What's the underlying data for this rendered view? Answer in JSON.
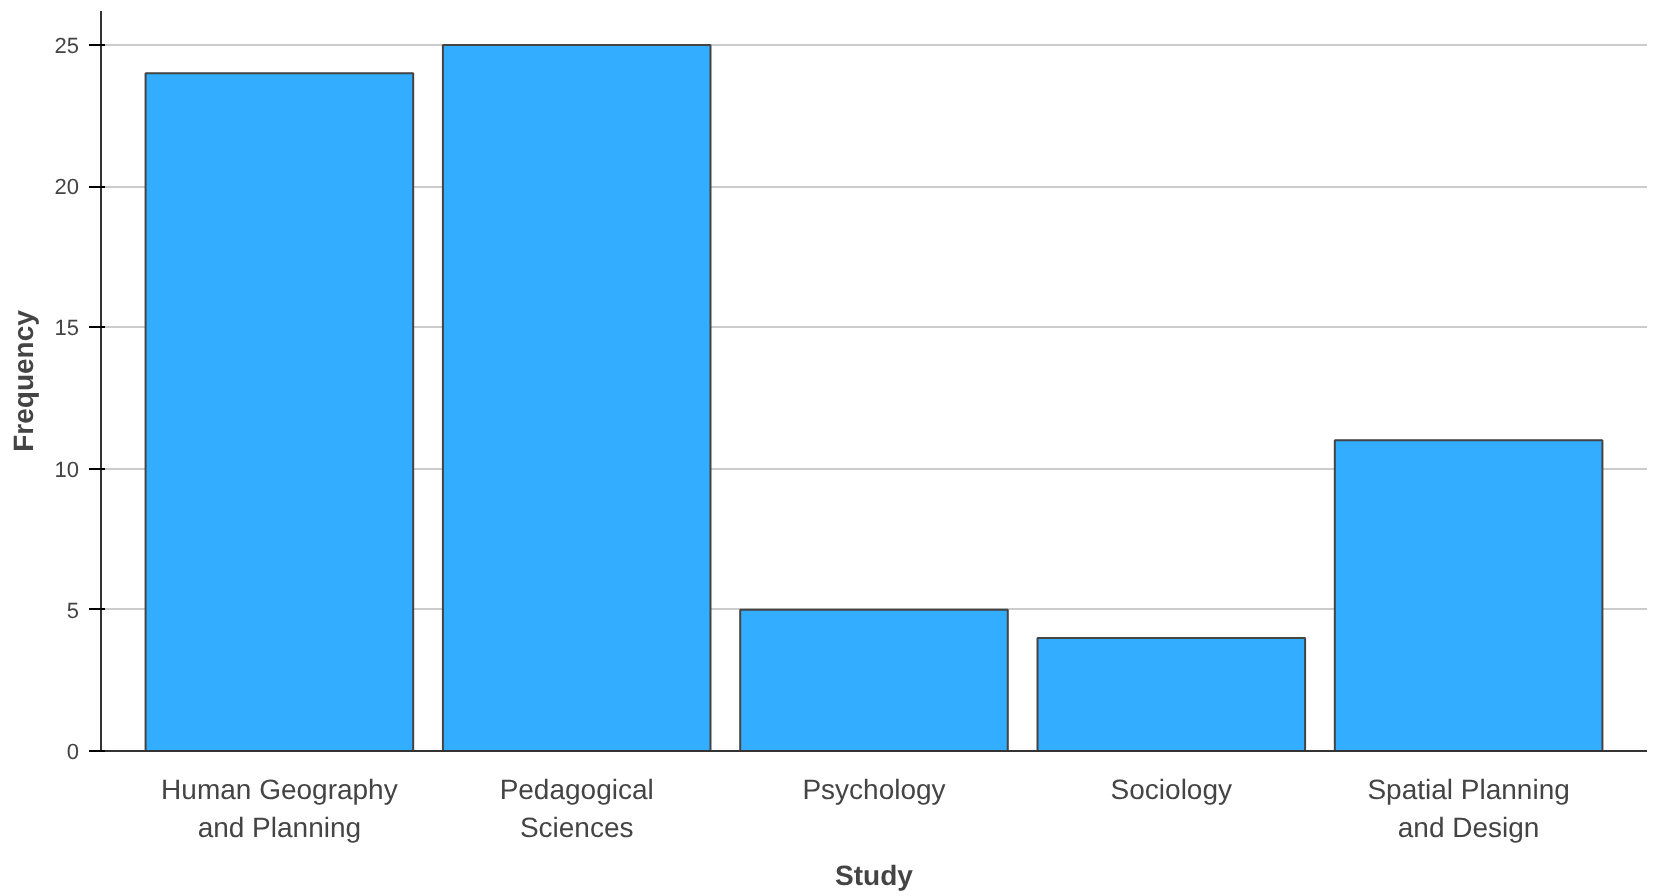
{
  "chart_data": {
    "type": "bar",
    "xlabel": "Study",
    "ylabel": "Frequency",
    "categories": [
      "Human Geography and Planning",
      "Pedagogical Sciences",
      "Psychology",
      "Sociology",
      "Spatial Planning and Design"
    ],
    "values": [
      24,
      25,
      5,
      4,
      11
    ],
    "color": "#33adff",
    "ylim": [
      0,
      26.2
    ],
    "yticks": [
      0,
      5,
      10,
      15,
      20,
      25
    ],
    "grid": "y"
  }
}
